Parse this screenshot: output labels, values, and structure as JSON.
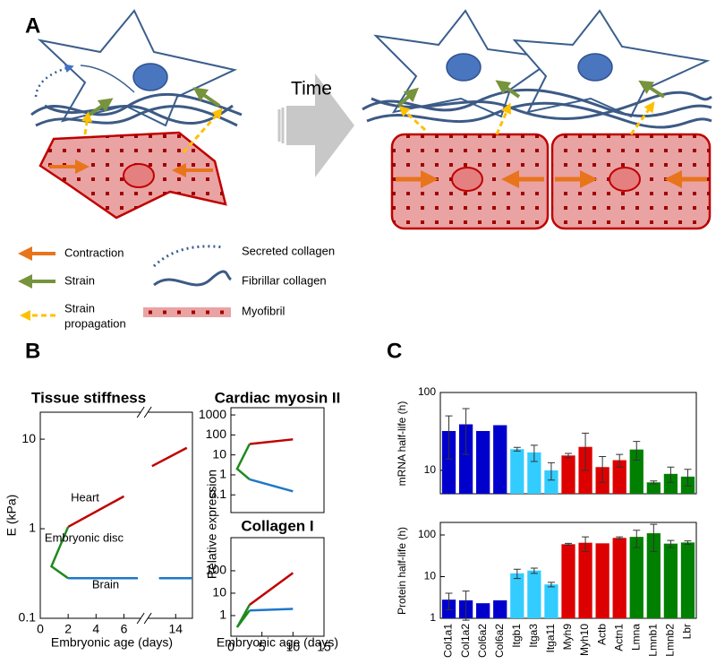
{
  "panel_labels": [
    "A",
    "B",
    "C"
  ],
  "diagram": {
    "time_label": "Time",
    "legend": [
      {
        "label": [
          "Contraction"
        ]
      },
      {
        "label": [
          "Strain"
        ]
      },
      {
        "label": [
          "Strain",
          "propagation"
        ]
      },
      {
        "label": [
          "Secreted collagen"
        ]
      },
      {
        "label": [
          "Fibrillar collagen"
        ]
      },
      {
        "label": [
          "Myofibril"
        ]
      }
    ]
  },
  "chart_data": [
    {
      "type": "line",
      "title": "Tissue stiffness",
      "y_label": "E (kPa)",
      "x_label": "Embryonic age (days)",
      "log_y": true,
      "xlim": [
        0,
        15.2
      ],
      "x_break": [
        7.2,
        12
      ],
      "ylim": [
        0.1,
        20
      ],
      "xticks": [
        0,
        2,
        4,
        6,
        14
      ],
      "yticks": [
        0.1,
        1,
        10
      ],
      "series": [
        {
          "name": "Heart",
          "color": "#c00000",
          "x": [
            2,
            6,
            null,
            12.3,
            14.8
          ],
          "values": [
            1.05,
            2.3,
            null,
            5,
            8
          ]
        },
        {
          "name": "Embryonic disc",
          "color": "#1e8a1e",
          "x": [
            2,
            0.8,
            2
          ],
          "values": [
            1.05,
            0.38,
            0.28
          ]
        },
        {
          "name": "Brain",
          "color": "#1f77c8",
          "x": [
            2,
            7,
            null,
            12.8,
            15.2
          ],
          "values": [
            0.28,
            0.28,
            null,
            0.28,
            0.28
          ]
        }
      ]
    },
    {
      "type": "line",
      "title": "Cardiac myosin II",
      "y_label": "Relative expression",
      "log_y": true,
      "xlim": [
        0,
        15
      ],
      "ylim": [
        0.013,
        2300
      ],
      "yticks": [
        0.1,
        1,
        10,
        100,
        1000
      ],
      "series": [
        {
          "color": "#c00000",
          "x": [
            3,
            10
          ],
          "values": [
            35,
            60
          ]
        },
        {
          "color": "#1e8a1e",
          "x": [
            3,
            1,
            3
          ],
          "values": [
            35,
            2,
            0.6
          ]
        },
        {
          "color": "#1f77c8",
          "x": [
            3,
            10
          ],
          "values": [
            0.6,
            0.15
          ]
        }
      ]
    },
    {
      "type": "line",
      "title": "Collagen I",
      "x_label": "Embryonic age (days)",
      "log_y": true,
      "xlim": [
        0,
        15
      ],
      "ylim": [
        0.12,
        3000
      ],
      "xticks": [
        0,
        5,
        10,
        15
      ],
      "yticks": [
        1,
        10,
        100
      ],
      "series": [
        {
          "color": "#c00000",
          "x": [
            3,
            10
          ],
          "values": [
            3,
            80
          ]
        },
        {
          "color": "#1e8a1e",
          "x": [
            3,
            1,
            3
          ],
          "values": [
            3,
            0.3,
            1.7
          ]
        },
        {
          "color": "#1f77c8",
          "x": [
            3,
            10
          ],
          "values": [
            1.7,
            2
          ]
        }
      ]
    },
    {
      "type": "bar",
      "y_label": "mRNA half-life (h)",
      "log_y": true,
      "ylim": [
        5,
        100
      ],
      "yticks": [
        10,
        100
      ],
      "values": [
        32,
        39,
        32,
        38,
        18.7,
        17,
        10,
        15.5,
        20,
        11,
        13.5,
        18.5,
        7,
        9,
        8.3
      ],
      "errors": [
        18,
        23,
        0,
        0,
        1,
        4,
        2.5,
        1,
        10,
        4,
        2.5,
        5,
        0.3,
        2,
        2
      ],
      "colors": [
        "#0000cc",
        "#0000cc",
        "#0000cc",
        "#0000cc",
        "#33ccff",
        "#33ccff",
        "#33ccff",
        "#dd0000",
        "#dd0000",
        "#dd0000",
        "#dd0000",
        "#008000",
        "#008000",
        "#008000",
        "#008000"
      ]
    },
    {
      "type": "bar",
      "y_label": "Protein half-life (h)",
      "log_y": true,
      "ylim": [
        1,
        200
      ],
      "yticks": [
        1,
        10,
        100
      ],
      "categories": [
        "Col1a1",
        "Col1a2",
        "Col6a2",
        "Col6a2",
        "Itgb1",
        "Itga3",
        "Itga11",
        "Myh9",
        "Myh10",
        "Actb",
        "Actn1",
        "Lmna",
        "Lmnb1",
        "Lmnb2",
        "Lbr"
      ],
      "values": [
        2.8,
        2.7,
        2.3,
        2.7,
        12,
        14,
        6.5,
        60,
        65,
        63,
        85,
        90,
        110,
        62,
        66
      ],
      "errors": [
        1.2,
        1.8,
        0,
        0,
        3,
        2,
        0.8,
        3,
        25,
        0,
        5,
        40,
        70,
        12,
        6
      ],
      "colors": [
        "#0000cc",
        "#0000cc",
        "#0000cc",
        "#0000cc",
        "#33ccff",
        "#33ccff",
        "#33ccff",
        "#dd0000",
        "#dd0000",
        "#dd0000",
        "#dd0000",
        "#008000",
        "#008000",
        "#008000",
        "#008000"
      ]
    }
  ]
}
